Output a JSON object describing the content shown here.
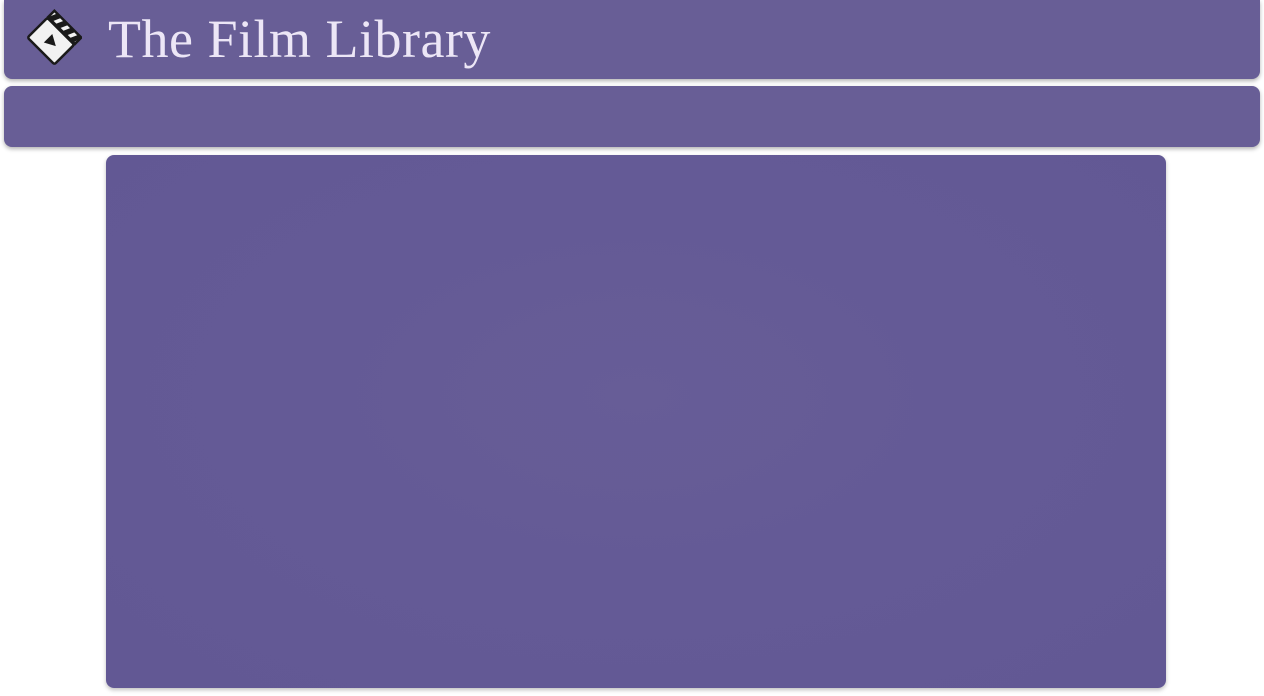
{
  "header": {
    "title": "The Film Library",
    "logo_icon": "clapperboard-icon"
  },
  "colors": {
    "primary": "#685e96",
    "content_panel": "#645a96",
    "title_text": "#ece6f6",
    "background": "#ffffff"
  }
}
